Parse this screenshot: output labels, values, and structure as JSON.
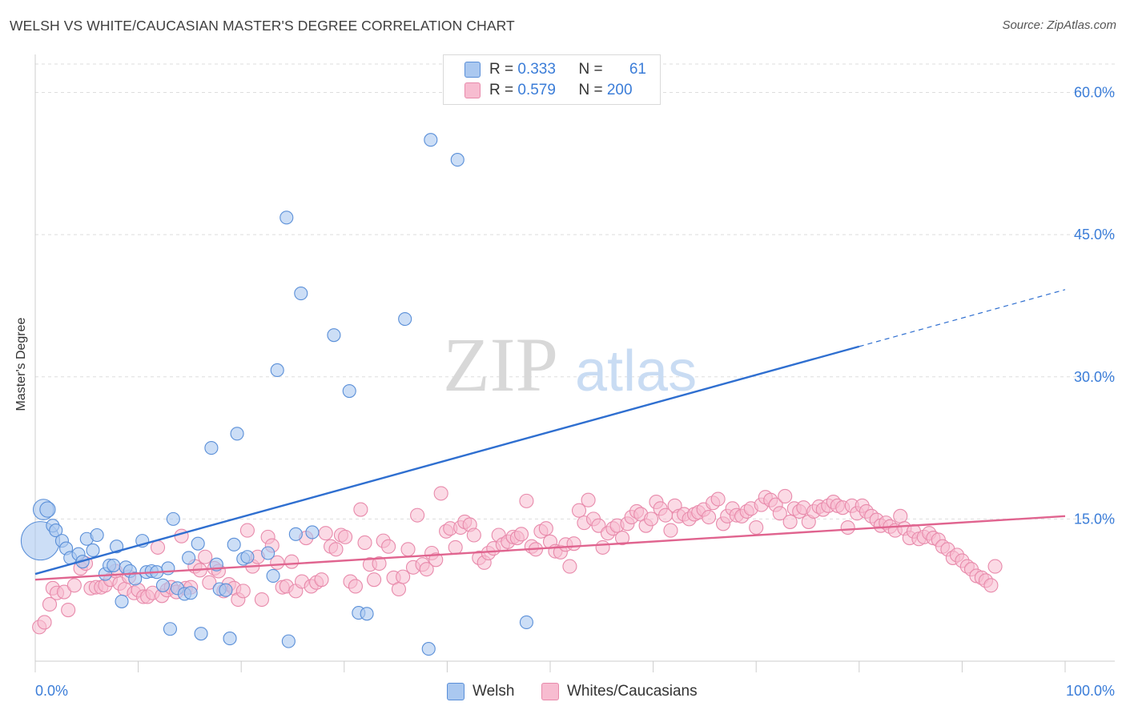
{
  "header": {
    "title": "WELSH VS WHITE/CAUCASIAN MASTER'S DEGREE CORRELATION CHART",
    "source": "Source: ZipAtlas.com"
  },
  "watermark": {
    "zip": "ZIP",
    "atlas": "atlas"
  },
  "legend": {
    "welsh": {
      "r_label": "R = ",
      "r_value": "0.333",
      "n_label": "N = ",
      "n_value": "61"
    },
    "whites": {
      "r_label": "R = ",
      "r_value": "0.579",
      "n_label": "N = ",
      "n_value": "200"
    }
  },
  "bottom_legend": {
    "welsh": "Welsh",
    "whites": "Whites/Caucasians"
  },
  "colors": {
    "welsh_fill": "#aac8f0",
    "welsh_stroke": "#5a8fd8",
    "welsh_line": "#2f6fd0",
    "whites_fill": "#f7bcd0",
    "whites_stroke": "#e88aab",
    "whites_line": "#e0648f",
    "grid": "#dddddd",
    "axis_text": "#3b7dd8"
  },
  "chart_data": {
    "type": "scatter",
    "title": "WELSH VS WHITE/CAUCASIAN MASTER'S DEGREE CORRELATION CHART",
    "xlabel": "",
    "ylabel": "Master's Degree",
    "xlim": [
      0,
      100
    ],
    "ylim": [
      0,
      63
    ],
    "x_tick_labels": [
      "0.0%",
      "100.0%"
    ],
    "y_ticks": [
      15,
      30,
      45,
      60
    ],
    "y_tick_labels": [
      "15.0%",
      "30.0%",
      "45.0%",
      "60.0%"
    ],
    "series": [
      {
        "name": "Welsh",
        "R": 0.333,
        "N": 61,
        "trend": {
          "x0": 0,
          "y0": 9.2,
          "x1": 80,
          "y1": 33.2,
          "dashed_to_x": 100,
          "dashed_to_y": 39.2
        },
        "points": [
          [
            0.5,
            12.7,
            3
          ],
          [
            0.8,
            16,
            1.6
          ],
          [
            1.2,
            16,
            1.2
          ],
          [
            1.7,
            14.3,
            1
          ],
          [
            2,
            13.8,
            1
          ],
          [
            2.6,
            12.7,
            1
          ],
          [
            3,
            11.9,
            1
          ],
          [
            3.4,
            10.9,
            1
          ],
          [
            4.2,
            11.3,
            1
          ],
          [
            4.6,
            10.5,
            1
          ],
          [
            5,
            12.9,
            1
          ],
          [
            5.6,
            11.7,
            1
          ],
          [
            6,
            13.3,
            1
          ],
          [
            6.8,
            9.2,
            1
          ],
          [
            7.2,
            10.1,
            1
          ],
          [
            7.6,
            10.1,
            1
          ],
          [
            7.9,
            12.1,
            1
          ],
          [
            8.4,
            6.3,
            1
          ],
          [
            8.8,
            9.9,
            1
          ],
          [
            9.2,
            9.5,
            1
          ],
          [
            9.7,
            8.7,
            1
          ],
          [
            10.4,
            12.7,
            1
          ],
          [
            10.8,
            9.4,
            1
          ],
          [
            11.3,
            9.5,
            1
          ],
          [
            11.8,
            9.4,
            1
          ],
          [
            12.4,
            8.0,
            1
          ],
          [
            12.9,
            9.8,
            1
          ],
          [
            13.1,
            3.4,
            1
          ],
          [
            13.4,
            15.0,
            1
          ],
          [
            13.8,
            7.7,
            1
          ],
          [
            14.5,
            7.1,
            1
          ],
          [
            14.9,
            10.9,
            1
          ],
          [
            15.1,
            7.2,
            1
          ],
          [
            15.8,
            12.4,
            1
          ],
          [
            16.1,
            2.9,
            1
          ],
          [
            17.1,
            22.5,
            1
          ],
          [
            17.6,
            10.2,
            1
          ],
          [
            17.9,
            7.6,
            1
          ],
          [
            18.5,
            7.5,
            1
          ],
          [
            18.9,
            2.4,
            1
          ],
          [
            19.3,
            12.3,
            1
          ],
          [
            19.6,
            24.0,
            1
          ],
          [
            20.2,
            10.8,
            1
          ],
          [
            20.6,
            11.0,
            1
          ],
          [
            22.6,
            11.4,
            1
          ],
          [
            23.1,
            9.0,
            1
          ],
          [
            23.5,
            30.7,
            1
          ],
          [
            24.4,
            46.8,
            1
          ],
          [
            24.6,
            2.1,
            1
          ],
          [
            25.3,
            13.4,
            1
          ],
          [
            25.8,
            38.8,
            1
          ],
          [
            26.9,
            13.6,
            1
          ],
          [
            29.0,
            34.4,
            1
          ],
          [
            30.5,
            28.5,
            1
          ],
          [
            31.4,
            5.1,
            1
          ],
          [
            32.2,
            5.0,
            1
          ],
          [
            35.9,
            36.1,
            1
          ],
          [
            38.2,
            1.3,
            1
          ],
          [
            38.4,
            55.0,
            1
          ],
          [
            41.0,
            52.9,
            1
          ],
          [
            47.7,
            4.1,
            1
          ]
        ]
      },
      {
        "name": "Whites/Caucasians",
        "R": 0.579,
        "N": 200,
        "trend": {
          "x0": 0,
          "y0": 8.6,
          "x1": 100,
          "y1": 15.3
        },
        "points": [
          [
            0.4,
            3.6
          ],
          [
            0.9,
            4.1
          ],
          [
            1.4,
            6.0
          ],
          [
            1.7,
            7.7
          ],
          [
            2.1,
            7.2
          ],
          [
            2.8,
            7.3
          ],
          [
            3.2,
            5.4
          ],
          [
            3.8,
            8.0
          ],
          [
            4.4,
            9.8
          ],
          [
            4.9,
            10.3
          ],
          [
            5.4,
            7.7
          ],
          [
            5.9,
            7.8
          ],
          [
            6.4,
            7.8
          ],
          [
            6.8,
            8.0
          ],
          [
            7.3,
            8.6
          ],
          [
            7.8,
            9.5
          ],
          [
            8.2,
            8.2
          ],
          [
            8.7,
            7.6
          ],
          [
            9.1,
            8.9
          ],
          [
            9.6,
            7.2
          ],
          [
            10.0,
            7.5
          ],
          [
            10.5,
            6.8
          ],
          [
            10.9,
            6.8
          ],
          [
            11.4,
            7.2
          ],
          [
            11.9,
            12.0
          ],
          [
            12.3,
            6.9
          ],
          [
            12.8,
            7.5
          ],
          [
            13.2,
            7.8
          ],
          [
            13.7,
            7.3
          ],
          [
            14.2,
            13.2
          ],
          [
            14.6,
            7.7
          ],
          [
            15.1,
            7.8
          ],
          [
            15.5,
            10.0
          ],
          [
            16.0,
            9.6
          ],
          [
            16.5,
            11.0
          ],
          [
            16.9,
            8.3
          ],
          [
            17.4,
            9.8
          ],
          [
            17.8,
            9.5
          ],
          [
            18.3,
            7.4
          ],
          [
            18.8,
            8.1
          ],
          [
            19.3,
            7.7
          ],
          [
            19.7,
            6.5
          ],
          [
            20.2,
            7.4
          ],
          [
            20.6,
            13.8
          ],
          [
            21.1,
            10.0
          ],
          [
            21.6,
            11.0
          ],
          [
            22.0,
            6.5
          ],
          [
            22.6,
            13.1
          ],
          [
            23.0,
            12.2
          ],
          [
            23.5,
            10.4
          ],
          [
            24.0,
            7.8
          ],
          [
            24.4,
            7.9
          ],
          [
            24.9,
            10.5
          ],
          [
            25.3,
            7.4
          ],
          [
            25.9,
            8.4
          ],
          [
            26.3,
            13.0
          ],
          [
            26.8,
            7.9
          ],
          [
            27.3,
            8.3
          ],
          [
            27.8,
            8.6
          ],
          [
            28.2,
            13.5
          ],
          [
            28.7,
            12.1
          ],
          [
            29.2,
            11.8
          ],
          [
            29.7,
            13.3
          ],
          [
            30.1,
            13.1
          ],
          [
            30.6,
            8.4
          ],
          [
            31.1,
            7.9
          ],
          [
            31.6,
            16.0
          ],
          [
            32.0,
            12.5
          ],
          [
            32.5,
            10.2
          ],
          [
            32.9,
            8.6
          ],
          [
            33.4,
            10.3
          ],
          [
            33.8,
            12.7
          ],
          [
            34.3,
            12.1
          ],
          [
            34.8,
            8.8
          ],
          [
            35.3,
            7.6
          ],
          [
            35.7,
            8.9
          ],
          [
            36.2,
            11.8
          ],
          [
            36.7,
            9.9
          ],
          [
            37.1,
            15.4
          ],
          [
            37.6,
            10.2
          ],
          [
            38.0,
            9.7
          ],
          [
            38.5,
            11.4
          ],
          [
            38.9,
            10.7
          ],
          [
            39.4,
            17.7
          ],
          [
            39.9,
            13.7
          ],
          [
            40.3,
            14.0
          ],
          [
            40.8,
            12.0
          ],
          [
            41.3,
            14.1
          ],
          [
            41.7,
            14.7
          ],
          [
            42.2,
            14.4
          ],
          [
            42.6,
            13.3
          ],
          [
            43.1,
            10.9
          ],
          [
            43.6,
            10.4
          ],
          [
            44.0,
            11.4
          ],
          [
            44.5,
            11.9
          ],
          [
            45.0,
            13.3
          ],
          [
            45.4,
            12.3
          ],
          [
            45.9,
            12.6
          ],
          [
            46.4,
            13.1
          ],
          [
            46.8,
            13.0
          ],
          [
            47.2,
            13.4
          ],
          [
            47.7,
            16.9
          ],
          [
            48.2,
            12.1
          ],
          [
            48.6,
            11.8
          ],
          [
            49.1,
            13.7
          ],
          [
            49.6,
            14.0
          ],
          [
            50.0,
            12.6
          ],
          [
            50.5,
            11.6
          ],
          [
            51.0,
            11.5
          ],
          [
            51.5,
            12.3
          ],
          [
            51.9,
            10.0
          ],
          [
            52.3,
            12.4
          ],
          [
            52.8,
            15.9
          ],
          [
            53.3,
            14.6
          ],
          [
            53.7,
            17.0
          ],
          [
            54.2,
            15.0
          ],
          [
            54.7,
            14.3
          ],
          [
            55.1,
            12.0
          ],
          [
            55.6,
            13.5
          ],
          [
            56.1,
            14.0
          ],
          [
            56.5,
            14.3
          ],
          [
            57.0,
            13.0
          ],
          [
            57.5,
            14.5
          ],
          [
            57.9,
            15.2
          ],
          [
            58.4,
            15.8
          ],
          [
            58.8,
            15.5
          ],
          [
            59.3,
            14.3
          ],
          [
            59.8,
            15.0
          ],
          [
            60.3,
            16.8
          ],
          [
            60.7,
            16.1
          ],
          [
            61.2,
            15.4
          ],
          [
            61.7,
            13.8
          ],
          [
            62.1,
            16.4
          ],
          [
            62.5,
            15.3
          ],
          [
            63.0,
            15.5
          ],
          [
            63.5,
            15.0
          ],
          [
            64.0,
            15.5
          ],
          [
            64.4,
            15.7
          ],
          [
            64.9,
            16.0
          ],
          [
            65.4,
            15.2
          ],
          [
            65.8,
            16.7
          ],
          [
            66.3,
            17.1
          ],
          [
            66.8,
            14.5
          ],
          [
            67.2,
            15.3
          ],
          [
            67.7,
            16.1
          ],
          [
            68.1,
            15.4
          ],
          [
            68.6,
            15.3
          ],
          [
            69.1,
            15.8
          ],
          [
            69.5,
            16.1
          ],
          [
            70.0,
            14.1
          ],
          [
            70.5,
            16.5
          ],
          [
            70.9,
            17.3
          ],
          [
            71.4,
            17.0
          ],
          [
            71.9,
            16.5
          ],
          [
            72.3,
            15.6
          ],
          [
            72.8,
            17.4
          ],
          [
            73.3,
            14.7
          ],
          [
            73.7,
            16.1
          ],
          [
            74.2,
            15.8
          ],
          [
            74.6,
            16.2
          ],
          [
            75.1,
            14.7
          ],
          [
            75.6,
            15.8
          ],
          [
            76.1,
            16.3
          ],
          [
            76.5,
            16.0
          ],
          [
            77.0,
            16.4
          ],
          [
            77.5,
            16.8
          ],
          [
            77.9,
            16.4
          ],
          [
            78.4,
            16.2
          ],
          [
            78.9,
            14.1
          ],
          [
            79.3,
            16.4
          ],
          [
            79.8,
            15.6
          ],
          [
            80.3,
            16.4
          ],
          [
            80.7,
            15.8
          ],
          [
            81.2,
            15.3
          ],
          [
            81.7,
            14.9
          ],
          [
            82.1,
            14.3
          ],
          [
            82.6,
            14.6
          ],
          [
            83.0,
            14.2
          ],
          [
            83.5,
            13.8
          ],
          [
            84.0,
            15.3
          ],
          [
            84.4,
            14.0
          ],
          [
            84.9,
            13.0
          ],
          [
            85.3,
            13.7
          ],
          [
            85.8,
            12.9
          ],
          [
            86.3,
            13.1
          ],
          [
            86.8,
            13.5
          ],
          [
            87.2,
            13.0
          ],
          [
            87.7,
            12.8
          ],
          [
            88.1,
            12.1
          ],
          [
            88.6,
            11.8
          ],
          [
            89.1,
            10.9
          ],
          [
            89.5,
            11.2
          ],
          [
            90.0,
            10.6
          ],
          [
            90.5,
            10.0
          ],
          [
            90.9,
            9.7
          ],
          [
            91.4,
            9.0
          ],
          [
            91.9,
            8.8
          ],
          [
            92.3,
            8.5
          ],
          [
            92.8,
            8.0
          ],
          [
            93.2,
            10.0
          ]
        ]
      }
    ]
  }
}
